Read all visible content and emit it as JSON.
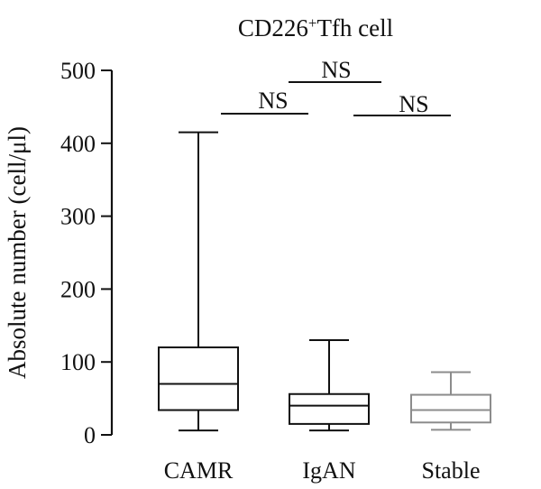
{
  "chart_data": {
    "type": "box",
    "title": {
      "prefix": "CD226",
      "superscript": "+",
      "suffix": "Tfh cell"
    },
    "xlabel": "",
    "ylabel": "Absolute number (cell/μl)",
    "ylim": [
      0,
      500
    ],
    "yticks": [
      0,
      100,
      200,
      300,
      400,
      500
    ],
    "ytick_labels": [
      "0",
      "100",
      "200",
      "300",
      "400",
      "500"
    ],
    "grid": false,
    "legend": "none",
    "categories": [
      "CAMR",
      "IgAN",
      "Stable"
    ],
    "boxes": [
      {
        "category": "CAMR",
        "min": 6,
        "q1": 34,
        "median": 70,
        "q3": 120,
        "max": 415,
        "color": "#111111"
      },
      {
        "category": "IgAN",
        "min": 6,
        "q1": 15,
        "median": 40,
        "q3": 56,
        "max": 130,
        "color": "#111111"
      },
      {
        "category": "Stable",
        "min": 7,
        "q1": 17,
        "median": 34,
        "q3": 55,
        "max": 86,
        "color": "#8c8c8c"
      }
    ],
    "annotations": [
      {
        "text": "NS",
        "from": "CAMR",
        "to": "IgAN",
        "level": 440
      },
      {
        "text": "NS",
        "from": "IgAN",
        "to": "Stable",
        "level": 440
      },
      {
        "text": "NS",
        "from": "IgAN",
        "to": "Stable",
        "level": 485,
        "spans_middle": true
      }
    ]
  }
}
